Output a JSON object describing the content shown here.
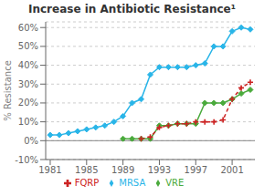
{
  "chart_data": {
    "type": "line",
    "title": "Increase in Antibiotic Resistance¹",
    "ylabel": "% Resistance",
    "xlim": [
      1980.5,
      2003.5
    ],
    "xticks": [
      1981,
      1985,
      1989,
      1993,
      1997,
      2001
    ],
    "ylim": [
      -0.1,
      0.63
    ],
    "yticks": [
      {
        "value": -0.1,
        "label": "-10%"
      },
      {
        "value": 0.0,
        "label": "0%"
      },
      {
        "value": 0.1,
        "label": "10%"
      },
      {
        "value": 0.2,
        "label": "20%"
      },
      {
        "value": 0.3,
        "label": "30%"
      },
      {
        "value": 0.4,
        "label": "40%"
      },
      {
        "value": 0.5,
        "label": "50%"
      },
      {
        "value": 0.6,
        "label": "60%"
      }
    ],
    "grid": true,
    "legend": "bottom",
    "series": [
      {
        "name": "MRSA",
        "color": "#29b5e8",
        "marker": "diamond",
        "line_style": "solid",
        "x": [
          1981,
          1982,
          1983,
          1984,
          1985,
          1986,
          1987,
          1988,
          1989,
          1990,
          1991,
          1992,
          1993,
          1994,
          1995,
          1996,
          1997,
          1998,
          1999,
          2000,
          2001,
          2002,
          2003
        ],
        "values": [
          0.03,
          0.03,
          0.04,
          0.05,
          0.06,
          0.07,
          0.08,
          0.1,
          0.13,
          0.2,
          0.22,
          0.35,
          0.39,
          0.39,
          0.39,
          0.39,
          0.4,
          0.41,
          0.5,
          0.5,
          0.58,
          0.6,
          0.59
        ]
      },
      {
        "name": "VRE",
        "color": "#4aaa3c",
        "marker": "diamond",
        "line_style": "solid",
        "x": [
          1989,
          1990,
          1991,
          1992,
          1993,
          1994,
          1995,
          1996,
          1997,
          1998,
          1999,
          2000,
          2001,
          2002,
          2003
        ],
        "values": [
          0.01,
          0.01,
          0.01,
          0.01,
          0.08,
          0.08,
          0.09,
          0.09,
          0.09,
          0.2,
          0.2,
          0.2,
          0.22,
          0.25,
          0.27
        ]
      },
      {
        "name": "FQRP",
        "color": "#cc2222",
        "marker": "plus",
        "line_style": "dashed",
        "x": [
          1991,
          1992,
          1993,
          1994,
          1995,
          1996,
          1997,
          1998,
          1999,
          2000,
          2001,
          2002,
          2003
        ],
        "values": [
          0.01,
          0.02,
          0.07,
          0.08,
          0.09,
          0.09,
          0.1,
          0.1,
          0.1,
          0.11,
          0.22,
          0.28,
          0.31
        ]
      }
    ]
  }
}
